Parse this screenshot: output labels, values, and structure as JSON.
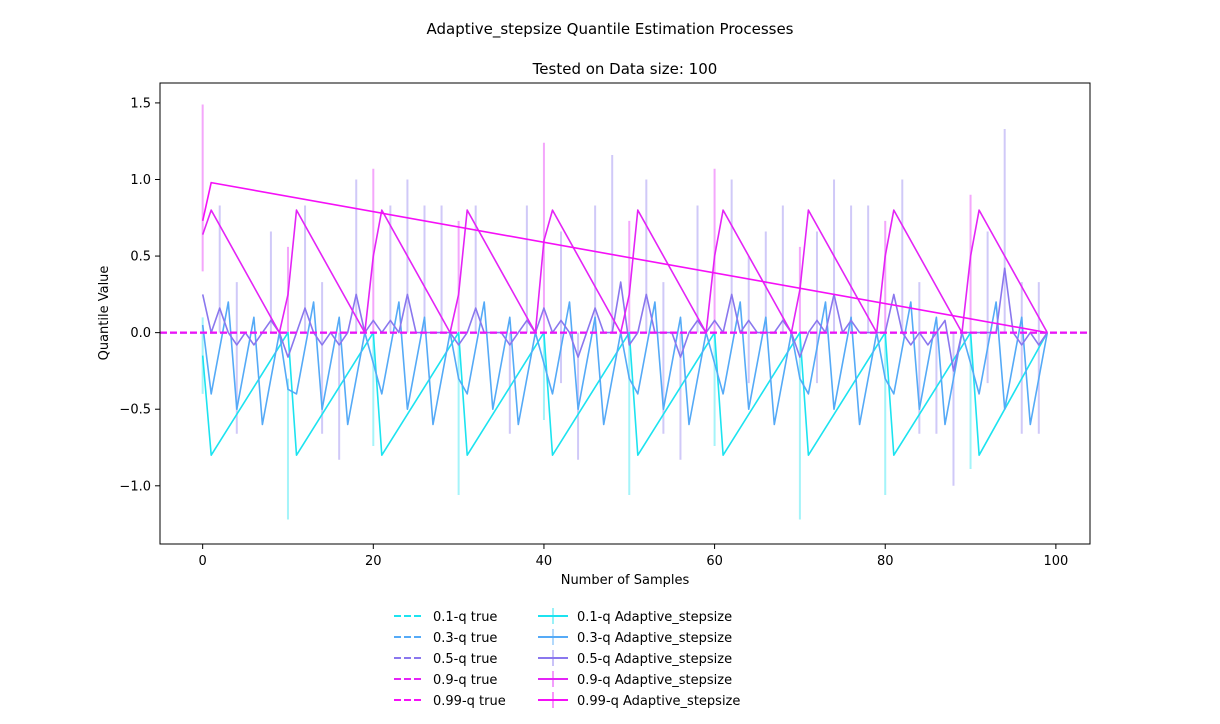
{
  "figure": {
    "suptitle": "Adaptive_stepsize Quantile Estimation Processes"
  },
  "chart_data": {
    "type": "line",
    "title": "Tested on Data size: 100",
    "xlabel": "Number of Samples",
    "ylabel": "Quantile Value",
    "xlim": [
      -5,
      104
    ],
    "ylim": [
      -1.38,
      1.63
    ],
    "xticks": [
      0,
      20,
      40,
      60,
      80,
      100
    ],
    "xtick_labels": [
      "0",
      "20",
      "40",
      "60",
      "80",
      "100"
    ],
    "yticks": [
      -1.0,
      -0.5,
      0.0,
      0.5,
      1.0,
      1.5
    ],
    "ytick_labels": [
      "−1.0",
      "−0.5",
      "0.0",
      "0.5",
      "1.0",
      "1.5"
    ],
    "grid": false,
    "legend_position": "below-center",
    "true_lines": [
      {
        "name": "0.1-q true",
        "value": 0.0,
        "color": "#1ce3f0"
      },
      {
        "name": "0.3-q true",
        "value": 0.0,
        "color": "#55aaf7"
      },
      {
        "name": "0.5-q true",
        "value": 0.0,
        "color": "#8a77ee"
      },
      {
        "name": "0.9-q true",
        "value": 0.0,
        "color": "#e424f6"
      },
      {
        "name": "0.99-q true",
        "value": 0.0,
        "color": "#f50ff7"
      }
    ],
    "series": [
      {
        "name": "0.1-q Adaptive_stepsize",
        "color": "#1ce3f0",
        "x": [
          0,
          1,
          10,
          11,
          20,
          21,
          30,
          31,
          40,
          41,
          50,
          51,
          60,
          61,
          70,
          71,
          80,
          81,
          90,
          91,
          99
        ],
        "y": [
          -0.15,
          -0.8,
          0.0,
          -0.8,
          0.0,
          -0.8,
          0.0,
          -0.8,
          0.0,
          -0.8,
          0.0,
          -0.8,
          0.0,
          -0.8,
          0.0,
          -0.8,
          0.0,
          -0.8,
          0.0,
          -0.8,
          0.0
        ],
        "errorbars": [
          {
            "x": 0,
            "lo": -0.4,
            "hi": 0.1
          },
          {
            "x": 10,
            "lo": -1.22,
            "hi": -0.3
          },
          {
            "x": 20,
            "lo": -0.74,
            "hi": 0.0
          },
          {
            "x": 30,
            "lo": -1.06,
            "hi": 0.0
          },
          {
            "x": 40,
            "lo": -0.57,
            "hi": 0.0
          },
          {
            "x": 50,
            "lo": -1.06,
            "hi": 0.0
          },
          {
            "x": 60,
            "lo": -0.74,
            "hi": 0.0
          },
          {
            "x": 70,
            "lo": -1.22,
            "hi": 0.0
          },
          {
            "x": 80,
            "lo": -1.06,
            "hi": 0.0
          },
          {
            "x": 90,
            "lo": -0.89,
            "hi": 0.0
          }
        ]
      },
      {
        "name": "0.3-q Adaptive_stepsize",
        "color": "#55aaf7",
        "x": [
          0,
          1,
          3,
          4,
          6,
          7,
          9,
          10,
          11,
          13,
          14,
          16,
          17,
          19,
          20,
          21,
          23,
          24,
          26,
          27,
          29,
          30,
          31,
          33,
          34,
          36,
          37,
          39,
          40,
          41,
          43,
          44,
          46,
          47,
          49,
          50,
          51,
          53,
          54,
          56,
          57,
          59,
          60,
          61,
          63,
          64,
          66,
          67,
          69,
          70,
          71,
          73,
          74,
          76,
          77,
          79,
          80,
          81,
          83,
          84,
          86,
          87,
          89,
          90,
          91,
          93,
          94,
          96,
          97,
          99
        ],
        "y": [
          0.05,
          -0.4,
          0.2,
          -0.5,
          0.1,
          -0.6,
          0.0,
          -0.37,
          -0.4,
          0.2,
          -0.5,
          0.1,
          -0.6,
          0.0,
          -0.2,
          -0.4,
          0.2,
          -0.5,
          0.1,
          -0.6,
          0.0,
          -0.3,
          -0.4,
          0.2,
          -0.5,
          0.1,
          -0.6,
          0.0,
          -0.2,
          -0.4,
          0.2,
          -0.5,
          0.1,
          -0.6,
          0.0,
          -0.3,
          -0.4,
          0.2,
          -0.5,
          0.1,
          -0.6,
          0.0,
          -0.2,
          -0.4,
          0.2,
          -0.5,
          0.1,
          -0.6,
          0.0,
          -0.3,
          -0.4,
          0.2,
          -0.5,
          0.1,
          -0.6,
          0.0,
          -0.3,
          -0.4,
          0.2,
          -0.5,
          0.1,
          -0.6,
          0.0,
          -0.2,
          -0.4,
          0.2,
          -0.5,
          0.1,
          -0.6,
          0.0
        ]
      },
      {
        "name": "0.5-q Adaptive_stepsize",
        "color": "#8a77ee",
        "x": [
          0,
          1,
          2,
          3,
          4,
          5,
          6,
          7,
          8,
          9,
          10,
          11,
          12,
          13,
          14,
          15,
          16,
          17,
          18,
          19,
          20,
          21,
          22,
          23,
          24,
          25,
          26,
          27,
          28,
          29,
          30,
          31,
          32,
          33,
          34,
          35,
          36,
          37,
          38,
          39,
          40,
          41,
          42,
          43,
          44,
          45,
          46,
          47,
          48,
          49,
          50,
          51,
          52,
          53,
          54,
          55,
          56,
          57,
          58,
          59,
          60,
          61,
          62,
          63,
          64,
          65,
          66,
          67,
          68,
          69,
          70,
          71,
          72,
          73,
          74,
          75,
          76,
          77,
          78,
          79,
          80,
          81,
          82,
          83,
          84,
          85,
          86,
          87,
          88,
          89,
          90,
          91,
          92,
          93,
          94,
          95,
          96,
          97,
          98,
          99
        ],
        "y": [
          0.25,
          0.0,
          0.16,
          0.0,
          -0.08,
          0.0,
          -0.08,
          0.0,
          0.08,
          0.0,
          -0.16,
          0.0,
          0.16,
          0.0,
          -0.08,
          0.0,
          -0.08,
          0.0,
          0.25,
          0.0,
          0.08,
          0.0,
          0.08,
          0.0,
          0.25,
          0.0,
          0.0,
          0.0,
          0.0,
          0.0,
          -0.08,
          0.0,
          0.16,
          0.0,
          0.0,
          0.0,
          -0.08,
          0.0,
          0.08,
          0.0,
          0.16,
          0.0,
          0.08,
          0.0,
          -0.16,
          0.0,
          0.16,
          0.0,
          0.0,
          0.33,
          -0.08,
          0.0,
          0.25,
          0.0,
          0.0,
          0.0,
          -0.16,
          0.0,
          0.08,
          0.0,
          0.08,
          0.0,
          0.25,
          0.0,
          0.08,
          0.0,
          0.0,
          0.0,
          0.08,
          0.0,
          -0.16,
          0.0,
          0.08,
          0.0,
          0.25,
          0.0,
          0.08,
          0.0,
          0.0,
          0.0,
          0.0,
          0.25,
          0.0,
          -0.08,
          0.0,
          -0.08,
          0.0,
          0.08,
          -0.25,
          0.0,
          0.0,
          0.0,
          0.0,
          0.0,
          0.42,
          0.0,
          -0.08,
          0.0,
          -0.08,
          0.0
        ],
        "errorbars": [
          {
            "x": 2,
            "lo": 0.0,
            "hi": 0.83
          },
          {
            "x": 4,
            "lo": -0.66,
            "hi": 0.33
          },
          {
            "x": 8,
            "lo": 0.0,
            "hi": 0.66
          },
          {
            "x": 12,
            "lo": 0.0,
            "hi": 0.83
          },
          {
            "x": 14,
            "lo": -0.66,
            "hi": 0.33
          },
          {
            "x": 16,
            "lo": -0.83,
            "hi": 0.0
          },
          {
            "x": 18,
            "lo": 0.0,
            "hi": 1.0
          },
          {
            "x": 22,
            "lo": 0.0,
            "hi": 0.83
          },
          {
            "x": 24,
            "lo": 0.0,
            "hi": 1.0
          },
          {
            "x": 26,
            "lo": 0.0,
            "hi": 0.83
          },
          {
            "x": 28,
            "lo": 0.0,
            "hi": 0.83
          },
          {
            "x": 32,
            "lo": 0.0,
            "hi": 0.83
          },
          {
            "x": 36,
            "lo": -0.66,
            "hi": 0.0
          },
          {
            "x": 38,
            "lo": 0.0,
            "hi": 0.83
          },
          {
            "x": 42,
            "lo": -0.33,
            "hi": 0.66
          },
          {
            "x": 44,
            "lo": -0.83,
            "hi": 0.0
          },
          {
            "x": 46,
            "lo": 0.0,
            "hi": 0.83
          },
          {
            "x": 48,
            "lo": 0.0,
            "hi": 1.16
          },
          {
            "x": 52,
            "lo": 0.0,
            "hi": 1.0
          },
          {
            "x": 54,
            "lo": -0.66,
            "hi": 0.33
          },
          {
            "x": 56,
            "lo": -0.83,
            "hi": 0.0
          },
          {
            "x": 58,
            "lo": 0.0,
            "hi": 0.83
          },
          {
            "x": 62,
            "lo": 0.0,
            "hi": 1.0
          },
          {
            "x": 64,
            "lo": -0.33,
            "hi": 0.5
          },
          {
            "x": 66,
            "lo": 0.0,
            "hi": 0.66
          },
          {
            "x": 68,
            "lo": 0.0,
            "hi": 0.83
          },
          {
            "x": 72,
            "lo": -0.33,
            "hi": 0.66
          },
          {
            "x": 74,
            "lo": 0.0,
            "hi": 1.0
          },
          {
            "x": 76,
            "lo": 0.0,
            "hi": 0.83
          },
          {
            "x": 78,
            "lo": 0.0,
            "hi": 0.83
          },
          {
            "x": 82,
            "lo": 0.0,
            "hi": 1.0
          },
          {
            "x": 84,
            "lo": -0.66,
            "hi": 0.33
          },
          {
            "x": 86,
            "lo": -0.66,
            "hi": 0.0
          },
          {
            "x": 88,
            "lo": -1.0,
            "hi": 0.0
          },
          {
            "x": 92,
            "lo": -0.33,
            "hi": 0.66
          },
          {
            "x": 94,
            "lo": 0.0,
            "hi": 1.33
          },
          {
            "x": 96,
            "lo": -0.66,
            "hi": 0.33
          },
          {
            "x": 98,
            "lo": -0.66,
            "hi": 0.33
          }
        ]
      },
      {
        "name": "0.9-q Adaptive_stepsize",
        "color": "#e424f6",
        "x": [
          0,
          1,
          9,
          10,
          11,
          19,
          20,
          21,
          29,
          30,
          31,
          39,
          40,
          41,
          49,
          50,
          51,
          59,
          60,
          61,
          69,
          70,
          71,
          79,
          80,
          81,
          89,
          90,
          91,
          99
        ],
        "y": [
          0.64,
          0.8,
          0.0,
          0.25,
          0.8,
          0.0,
          0.5,
          0.8,
          0.0,
          0.25,
          0.8,
          0.0,
          0.6,
          0.8,
          0.0,
          0.25,
          0.8,
          0.0,
          0.5,
          0.8,
          0.0,
          0.28,
          0.8,
          0.0,
          0.5,
          0.8,
          0.0,
          0.5,
          0.8,
          0.0
        ],
        "errorbars": [
          {
            "x": 0,
            "lo": 0.4,
            "hi": 1.49
          },
          {
            "x": 10,
            "lo": 0.0,
            "hi": 0.56
          },
          {
            "x": 20,
            "lo": 0.0,
            "hi": 1.07
          },
          {
            "x": 30,
            "lo": 0.0,
            "hi": 0.73
          },
          {
            "x": 40,
            "lo": 0.0,
            "hi": 1.24
          },
          {
            "x": 50,
            "lo": 0.0,
            "hi": 0.73
          },
          {
            "x": 60,
            "lo": 0.0,
            "hi": 1.07
          },
          {
            "x": 70,
            "lo": 0.0,
            "hi": 0.56
          },
          {
            "x": 80,
            "lo": 0.0,
            "hi": 0.73
          },
          {
            "x": 90,
            "lo": 0.0,
            "hi": 0.9
          }
        ]
      },
      {
        "name": "0.99-q Adaptive_stepsize",
        "color": "#f50ff7",
        "x": [
          0,
          1,
          99
        ],
        "y": [
          0.73,
          0.98,
          0.0
        ]
      }
    ]
  }
}
